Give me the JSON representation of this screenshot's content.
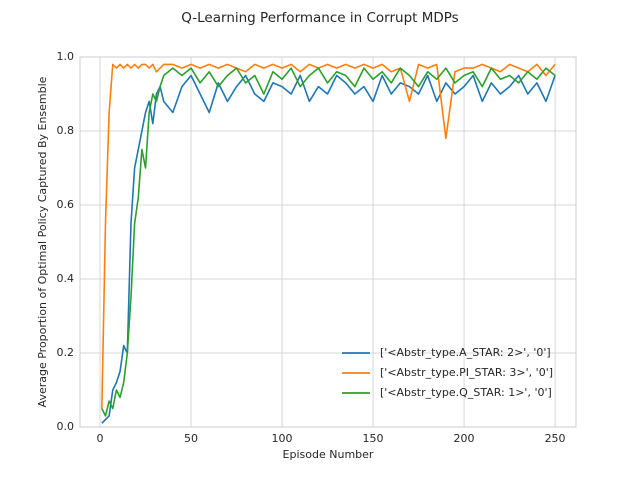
{
  "chart_data": {
    "type": "line",
    "title": "Q-Learning Performance in Corrupt MDPs",
    "xlabel": "Episode Number",
    "ylabel": "Average Proportion of Optimal Policy Captured By Ensemble",
    "x": [
      1,
      3,
      5,
      7,
      9,
      11,
      13,
      15,
      17,
      19,
      21,
      23,
      25,
      27,
      29,
      31,
      33,
      35,
      40,
      45,
      50,
      55,
      60,
      65,
      70,
      75,
      80,
      85,
      90,
      95,
      100,
      105,
      110,
      115,
      120,
      125,
      130,
      135,
      140,
      145,
      150,
      155,
      160,
      165,
      170,
      175,
      180,
      185,
      190,
      195,
      200,
      205,
      210,
      215,
      220,
      225,
      230,
      235,
      240,
      245,
      250
    ],
    "series": [
      {
        "name": "['<Abstr_type.A_STAR: 2>', '0']",
        "color": "#1f77b4",
        "values": [
          0.01,
          0.02,
          0.03,
          0.1,
          0.12,
          0.15,
          0.22,
          0.2,
          0.55,
          0.7,
          0.75,
          0.8,
          0.85,
          0.88,
          0.82,
          0.9,
          0.92,
          0.88,
          0.85,
          0.92,
          0.95,
          0.9,
          0.85,
          0.93,
          0.88,
          0.92,
          0.95,
          0.9,
          0.88,
          0.93,
          0.92,
          0.9,
          0.95,
          0.88,
          0.92,
          0.9,
          0.95,
          0.93,
          0.9,
          0.92,
          0.88,
          0.95,
          0.9,
          0.93,
          0.92,
          0.9,
          0.95,
          0.88,
          0.93,
          0.9,
          0.92,
          0.95,
          0.88,
          0.93,
          0.9,
          0.92,
          0.95,
          0.9,
          0.93,
          0.88,
          0.95
        ]
      },
      {
        "name": "['<Abstr_type.PI_STAR: 3>', '0']",
        "color": "#ff7f0e",
        "values": [
          0.05,
          0.55,
          0.85,
          0.98,
          0.97,
          0.98,
          0.97,
          0.98,
          0.97,
          0.98,
          0.97,
          0.98,
          0.98,
          0.97,
          0.98,
          0.96,
          0.97,
          0.98,
          0.98,
          0.97,
          0.98,
          0.97,
          0.98,
          0.97,
          0.98,
          0.97,
          0.96,
          0.98,
          0.97,
          0.98,
          0.97,
          0.98,
          0.96,
          0.98,
          0.97,
          0.98,
          0.97,
          0.98,
          0.97,
          0.98,
          0.97,
          0.98,
          0.96,
          0.97,
          0.88,
          0.98,
          0.97,
          0.98,
          0.78,
          0.96,
          0.97,
          0.97,
          0.98,
          0.97,
          0.96,
          0.98,
          0.97,
          0.96,
          0.98,
          0.95,
          0.98
        ]
      },
      {
        "name": "['<Abstr_type.Q_STAR: 1>', '0']",
        "color": "#2ca02c",
        "values": [
          0.05,
          0.03,
          0.07,
          0.05,
          0.1,
          0.08,
          0.12,
          0.2,
          0.35,
          0.55,
          0.62,
          0.75,
          0.7,
          0.85,
          0.9,
          0.88,
          0.92,
          0.95,
          0.97,
          0.95,
          0.97,
          0.93,
          0.96,
          0.92,
          0.95,
          0.97,
          0.93,
          0.95,
          0.9,
          0.96,
          0.94,
          0.97,
          0.92,
          0.95,
          0.97,
          0.93,
          0.96,
          0.95,
          0.92,
          0.97,
          0.94,
          0.96,
          0.93,
          0.97,
          0.95,
          0.92,
          0.96,
          0.94,
          0.97,
          0.93,
          0.95,
          0.96,
          0.92,
          0.97,
          0.94,
          0.95,
          0.93,
          0.96,
          0.94,
          0.97,
          0.95
        ]
      }
    ],
    "xlim": [
      -11,
      261.5
    ],
    "xticks": [
      0,
      50,
      100,
      150,
      200,
      250
    ],
    "ylim": [
      0,
      1
    ],
    "yticks": [
      {
        "value": 0,
        "label": "0.0"
      },
      {
        "value": 0.2,
        "label": "0.2"
      },
      {
        "value": 0.4,
        "label": "0.4"
      },
      {
        "value": 0.6,
        "label": "0.6"
      },
      {
        "value": 0.8,
        "label": "0.8"
      },
      {
        "value": 1,
        "label": "1.0"
      }
    ],
    "grid": true,
    "legend": "lower right"
  }
}
